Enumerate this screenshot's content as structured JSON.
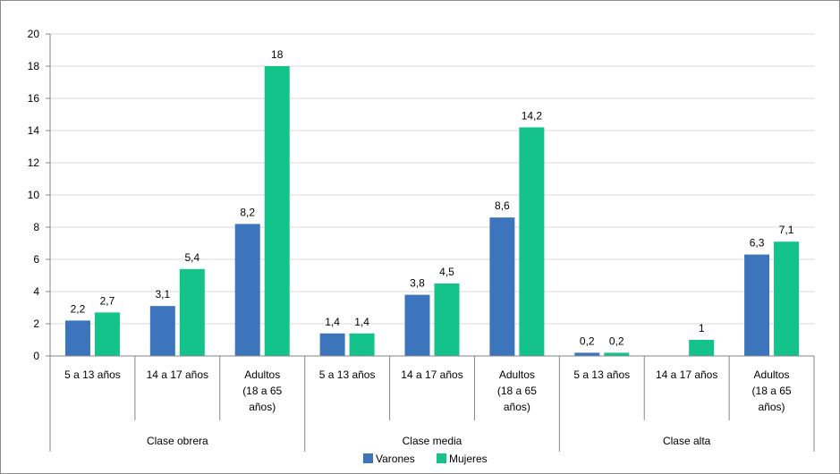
{
  "chart_data": {
    "type": "bar",
    "groups": [
      {
        "label": "Clase obrera",
        "categories": [
          "5 a 13 años",
          "14 a 17 años",
          "Adultos (18 a 65 años)"
        ]
      },
      {
        "label": "Clase media",
        "categories": [
          "5 a 13 años",
          "14 a 17 años",
          "Adultos (18 a 65 años)"
        ]
      },
      {
        "label": "Clase alta",
        "categories": [
          "5 a 13 años",
          "14 a 17 años",
          "Adultos (18 a 65 años)"
        ]
      }
    ],
    "series": [
      {
        "name": "Varones",
        "color": "#3d75bd",
        "values": [
          2.2,
          3.1,
          8.2,
          1.4,
          3.8,
          8.6,
          0.2,
          null,
          6.3
        ],
        "labels": [
          "2,2",
          "3,1",
          "8,2",
          "1,4",
          "3,8",
          "8,6",
          "0,2",
          "",
          "6,3"
        ]
      },
      {
        "name": "Mujeres",
        "color": "#14c38a",
        "values": [
          2.7,
          5.4,
          18,
          1.4,
          4.5,
          14.2,
          0.2,
          1,
          7.1
        ],
        "labels": [
          "2,7",
          "5,4",
          "18",
          "1,4",
          "4,5",
          "14,2",
          "0,2",
          "1",
          "7,1"
        ]
      }
    ],
    "yticks": [
      "0",
      "2",
      "4",
      "6",
      "8",
      "10",
      "12",
      "14",
      "16",
      "18",
      "20"
    ],
    "ylim": [
      0,
      20
    ],
    "grid": true,
    "legend": "bottom"
  }
}
